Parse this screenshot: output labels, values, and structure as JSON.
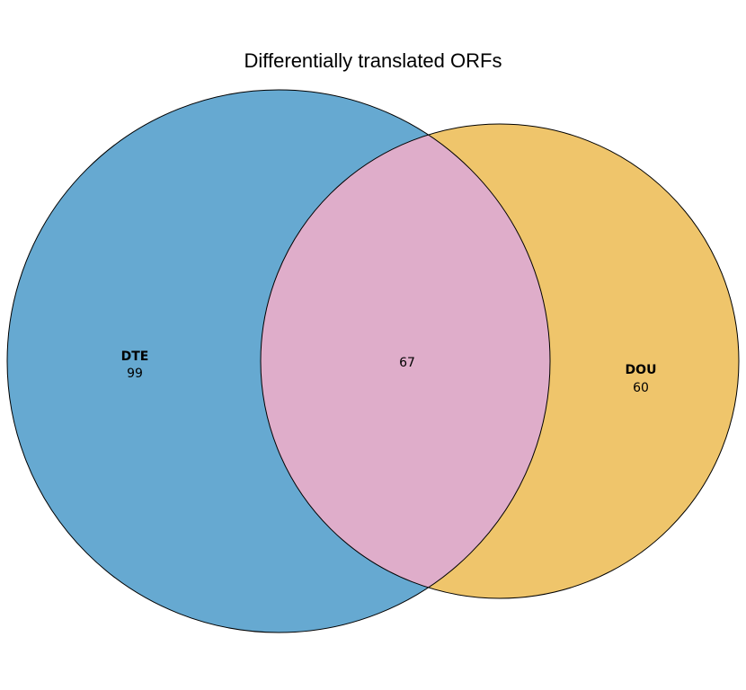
{
  "title": "Differentially translated ORFs",
  "sets": [
    {
      "name": "DTE",
      "only_count": "99",
      "color": "#66a9d1",
      "icon": "venn-circle"
    },
    {
      "name": "DOU",
      "only_count": "60",
      "color": "#efc56b",
      "icon": "venn-circle"
    }
  ],
  "intersection": {
    "count": "67",
    "color": "#dfadca"
  },
  "outline_color": "#000000"
}
